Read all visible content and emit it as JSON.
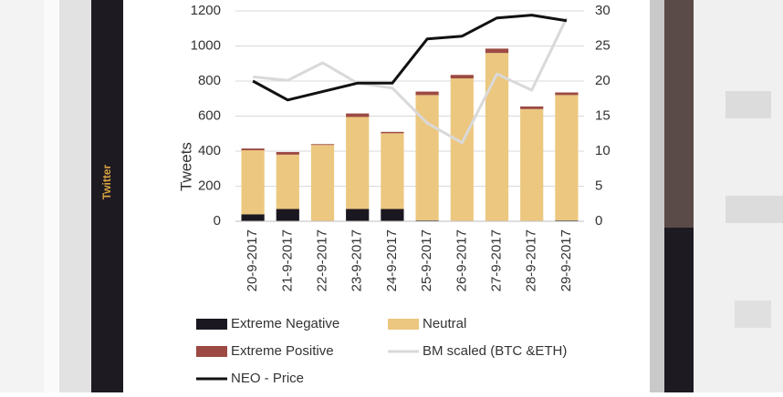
{
  "sidebar_label": "Twitter",
  "chart_data": {
    "type": "bar",
    "y_label": "Tweets",
    "categories": [
      "20-9-2017",
      "21-9-2017",
      "22-9-2017",
      "23-9-2017",
      "24-9-2017",
      "25-9-2017",
      "26-9-2017",
      "27-9-2017",
      "28-9-2017",
      "29-9-2017"
    ],
    "series": [
      {
        "name": "Extreme Negative",
        "type": "bar",
        "color": "#1b1720",
        "values": [
          40,
          70,
          2,
          70,
          70,
          5,
          2,
          2,
          0,
          5
        ]
      },
      {
        "name": "Neutral",
        "type": "bar",
        "color": "#ecc77f",
        "values": [
          365,
          310,
          433,
          525,
          432,
          715,
          813,
          958,
          640,
          715
        ]
      },
      {
        "name": "Extreme Positive",
        "type": "bar",
        "color": "#9c4a43",
        "values": [
          10,
          15,
          5,
          20,
          8,
          20,
          20,
          25,
          15,
          15
        ]
      },
      {
        "name": "BM scaled (BTC &ETH)",
        "type": "line",
        "axis": "y2",
        "color": "#d9d9d9",
        "values": [
          20.6,
          20.1,
          22.6,
          19.7,
          19,
          14,
          11.2,
          21,
          18.7,
          29
        ]
      },
      {
        "name": "NEO - Price",
        "type": "line",
        "axis": "y2",
        "color": "#111111",
        "values": [
          20,
          17.3,
          18.5,
          19.7,
          19.7,
          26,
          26.4,
          29,
          29.4,
          28.6
        ]
      }
    ],
    "ylim": [
      0,
      1200
    ],
    "yticks": [
      0,
      200,
      400,
      600,
      800,
      1000,
      1200
    ],
    "y2lim": [
      0,
      30
    ],
    "y2ticks": [
      0,
      5,
      10,
      15,
      20,
      25,
      30
    ],
    "grid": true
  }
}
